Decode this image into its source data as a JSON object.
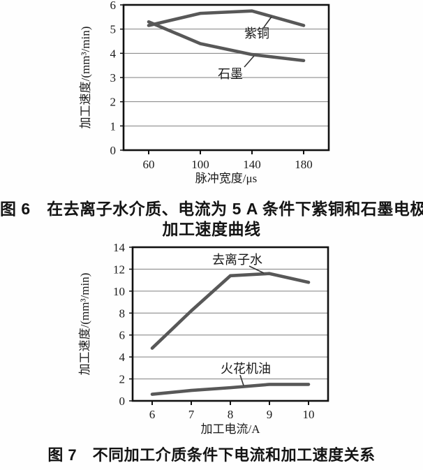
{
  "page": {
    "background": "#fefefe"
  },
  "colors": {
    "line": "#585858",
    "grid": "#7f7f7f",
    "axis": "#111111",
    "text": "#1a1a1a",
    "leader": "#333333"
  },
  "figure6": {
    "caption_line1": "图 6　在去离子水介质、电流为 5 A 条件下紫铜和石墨电极",
    "caption_line2": "加工速度曲线"
  },
  "figure7": {
    "caption": "图 7　不同加工介质条件下电流和加工速度关系"
  },
  "chart_data": [
    {
      "id": "fig6",
      "type": "line",
      "title": "",
      "categories": [
        60,
        100,
        140,
        180
      ],
      "series": [
        {
          "name": "紫铜",
          "values": [
            5.15,
            5.65,
            5.75,
            5.15
          ]
        },
        {
          "name": "石墨",
          "values": [
            5.3,
            4.4,
            3.95,
            3.7
          ]
        }
      ],
      "xlabel": "脉冲宽度/μs",
      "ylabel": "加工速度/(mm³/min)",
      "ylim": [
        0,
        6
      ],
      "ytick_step": 1,
      "grid": "horizontal",
      "legend": "inline-labels-with-leader-lines"
    },
    {
      "id": "fig7",
      "type": "line",
      "title": "",
      "categories": [
        6,
        7,
        8,
        9,
        10
      ],
      "series": [
        {
          "name": "去离子水",
          "values": [
            4.8,
            8.2,
            11.4,
            11.6,
            10.8
          ]
        },
        {
          "name": "火花机油",
          "values": [
            0.6,
            0.95,
            1.2,
            1.5,
            1.5
          ]
        }
      ],
      "xlabel": "加工电流/A",
      "ylabel": "加工速度/(mm³/min)",
      "ylim": [
        0,
        14
      ],
      "ytick_step": 2,
      "grid": "horizontal",
      "legend": "inline-labels-with-leader-lines"
    }
  ]
}
